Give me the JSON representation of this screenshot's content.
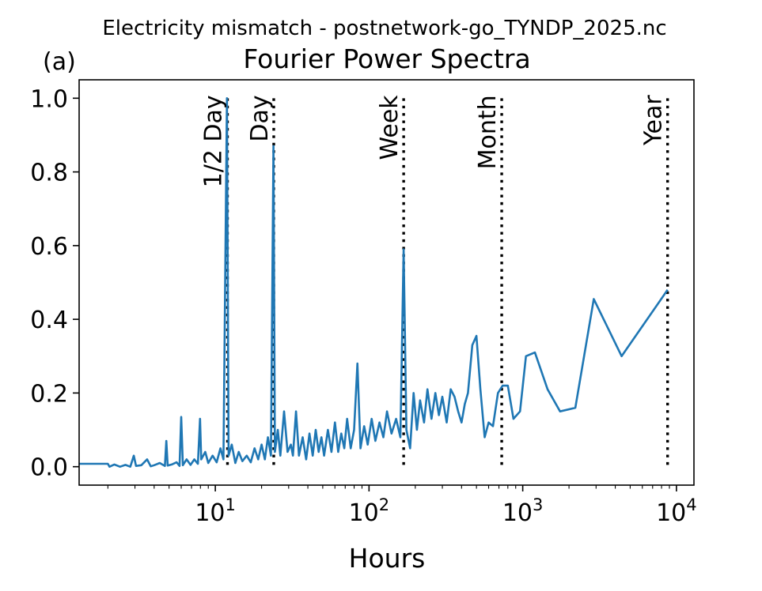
{
  "chart_data": {
    "type": "line",
    "suptitle": "Electricity mismatch - postnetwork-go_TYNDP_2025.nc",
    "title": "Fourier Power Spectra",
    "panel_label": "(a)",
    "xlabel": "Hours",
    "ylabel": "",
    "xscale": "log",
    "xlim": [
      1.3,
      13000
    ],
    "ylim": [
      -0.05,
      1.05
    ],
    "yticks": [
      0.0,
      0.2,
      0.4,
      0.6,
      0.8,
      1.0
    ],
    "ytick_labels": [
      "0.0",
      "0.2",
      "0.4",
      "0.6",
      "0.8",
      "1.0"
    ],
    "xticks": [
      {
        "value": 10,
        "base": "10",
        "exp": "1"
      },
      {
        "value": 100,
        "base": "10",
        "exp": "2"
      },
      {
        "value": 1000,
        "base": "10",
        "exp": "3"
      },
      {
        "value": 10000,
        "base": "10",
        "exp": "4"
      }
    ],
    "line_color": "#1f77b4",
    "reference_lines": [
      {
        "label": "1/2 Day",
        "x": 12
      },
      {
        "label": "Day",
        "x": 24
      },
      {
        "label": "Week",
        "x": 168
      },
      {
        "label": "Month",
        "x": 730
      },
      {
        "label": "Year",
        "x": 8760
      }
    ],
    "series": [
      {
        "name": "Electricity mismatch",
        "points": [
          [
            1.3,
            0.008
          ],
          [
            2.0,
            0.008
          ],
          [
            2.05,
            0.0
          ],
          [
            2.2,
            0.006
          ],
          [
            2.4,
            0.0
          ],
          [
            2.6,
            0.005
          ],
          [
            2.8,
            0.0
          ],
          [
            2.95,
            0.03
          ],
          [
            3.05,
            0.002
          ],
          [
            3.3,
            0.004
          ],
          [
            3.6,
            0.02
          ],
          [
            3.8,
            0.001
          ],
          [
            4.0,
            0.004
          ],
          [
            4.35,
            0.01
          ],
          [
            4.7,
            0.002
          ],
          [
            4.8,
            0.07
          ],
          [
            4.9,
            0.003
          ],
          [
            5.2,
            0.006
          ],
          [
            5.6,
            0.012
          ],
          [
            5.85,
            0.002
          ],
          [
            6.0,
            0.135
          ],
          [
            6.15,
            0.004
          ],
          [
            6.5,
            0.02
          ],
          [
            6.9,
            0.005
          ],
          [
            7.3,
            0.02
          ],
          [
            7.7,
            0.008
          ],
          [
            7.95,
            0.13
          ],
          [
            8.1,
            0.02
          ],
          [
            8.6,
            0.04
          ],
          [
            9.0,
            0.01
          ],
          [
            9.6,
            0.03
          ],
          [
            10.2,
            0.012
          ],
          [
            10.8,
            0.05
          ],
          [
            11.3,
            0.02
          ],
          [
            11.9,
            1.0
          ],
          [
            12.2,
            0.03
          ],
          [
            12.8,
            0.06
          ],
          [
            13.5,
            0.01
          ],
          [
            14.2,
            0.04
          ],
          [
            15.0,
            0.015
          ],
          [
            16.0,
            0.03
          ],
          [
            17.0,
            0.012
          ],
          [
            18.0,
            0.05
          ],
          [
            19.0,
            0.02
          ],
          [
            20.0,
            0.06
          ],
          [
            21.0,
            0.02
          ],
          [
            22.0,
            0.08
          ],
          [
            23.0,
            0.03
          ],
          [
            23.9,
            0.87
          ],
          [
            24.4,
            0.04
          ],
          [
            25.5,
            0.1
          ],
          [
            26.5,
            0.03
          ],
          [
            28.0,
            0.15
          ],
          [
            29.5,
            0.04
          ],
          [
            31.0,
            0.06
          ],
          [
            32.0,
            0.03
          ],
          [
            33.5,
            0.15
          ],
          [
            35.0,
            0.03
          ],
          [
            37.0,
            0.08
          ],
          [
            39.0,
            0.02
          ],
          [
            41.0,
            0.09
          ],
          [
            43.0,
            0.03
          ],
          [
            45.0,
            0.1
          ],
          [
            47.0,
            0.04
          ],
          [
            49.0,
            0.08
          ],
          [
            51.0,
            0.03
          ],
          [
            54.0,
            0.1
          ],
          [
            57.0,
            0.04
          ],
          [
            60.0,
            0.12
          ],
          [
            63.0,
            0.04
          ],
          [
            66.0,
            0.09
          ],
          [
            69.0,
            0.05
          ],
          [
            72.0,
            0.13
          ],
          [
            76.0,
            0.05
          ],
          [
            80.0,
            0.1
          ],
          [
            84.0,
            0.28
          ],
          [
            88.0,
            0.05
          ],
          [
            93.0,
            0.11
          ],
          [
            98.0,
            0.06
          ],
          [
            104.0,
            0.13
          ],
          [
            110.0,
            0.07
          ],
          [
            117.0,
            0.12
          ],
          [
            124.0,
            0.08
          ],
          [
            131.0,
            0.15
          ],
          [
            140.0,
            0.09
          ],
          [
            150.0,
            0.13
          ],
          [
            160.0,
            0.08
          ],
          [
            168.0,
            0.59
          ],
          [
            175.0,
            0.1
          ],
          [
            185.0,
            0.05
          ],
          [
            195.0,
            0.2
          ],
          [
            205.0,
            0.1
          ],
          [
            215.0,
            0.18
          ],
          [
            228.0,
            0.12
          ],
          [
            240.0,
            0.21
          ],
          [
            255.0,
            0.13
          ],
          [
            270.0,
            0.2
          ],
          [
            285.0,
            0.14
          ],
          [
            300.0,
            0.19
          ],
          [
            320.0,
            0.12
          ],
          [
            340.0,
            0.21
          ],
          [
            360.0,
            0.19
          ],
          [
            380.0,
            0.15
          ],
          [
            400.0,
            0.12
          ],
          [
            420.0,
            0.17
          ],
          [
            440.0,
            0.2
          ],
          [
            470.0,
            0.33
          ],
          [
            500.0,
            0.355
          ],
          [
            530.0,
            0.21
          ],
          [
            565.0,
            0.08
          ],
          [
            600.0,
            0.12
          ],
          [
            640.0,
            0.11
          ],
          [
            690.0,
            0.2
          ],
          [
            740.0,
            0.22
          ],
          [
            800.0,
            0.22
          ],
          [
            870.0,
            0.13
          ],
          [
            960.0,
            0.15
          ],
          [
            1050.0,
            0.3
          ],
          [
            1200.0,
            0.31
          ],
          [
            1450.0,
            0.21
          ],
          [
            1750.0,
            0.15
          ],
          [
            2200.0,
            0.16
          ],
          [
            2900.0,
            0.455
          ],
          [
            4400.0,
            0.3
          ],
          [
            8760.0,
            0.48
          ]
        ]
      }
    ]
  }
}
